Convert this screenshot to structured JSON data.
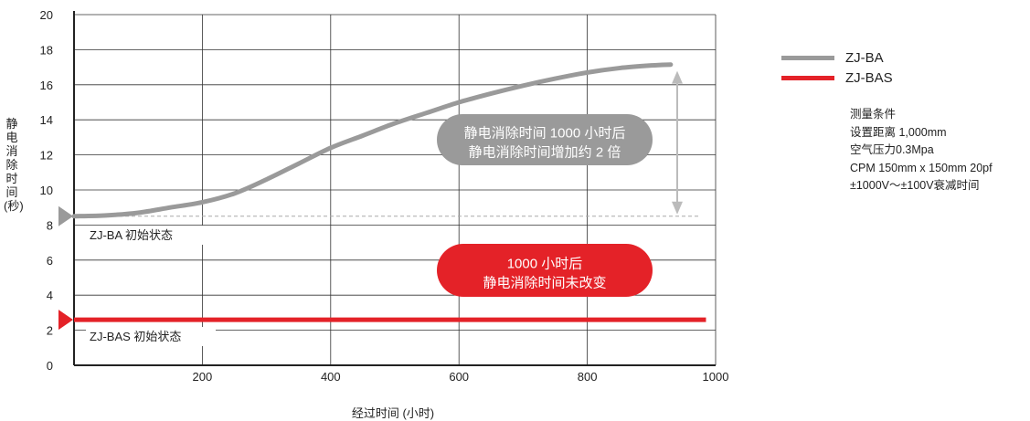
{
  "chart_data": {
    "type": "line",
    "xlabel": "经过时间 (小时)",
    "ylabel": "静电消除时间 (秒)",
    "xlim": [
      0,
      1000
    ],
    "ylim": [
      0,
      20
    ],
    "x_ticks": [
      200,
      400,
      600,
      800,
      1000
    ],
    "y_ticks": [
      0,
      2,
      4,
      6,
      8,
      10,
      12,
      14,
      16,
      18,
      20
    ],
    "grid": true,
    "legend_position": "right",
    "series": [
      {
        "name": "ZJ-BA",
        "color": "#9a9a9a",
        "x": [
          0,
          50,
          100,
          150,
          200,
          250,
          300,
          350,
          400,
          450,
          500,
          550,
          600,
          650,
          700,
          750,
          800,
          850,
          900,
          930
        ],
        "values": [
          8.5,
          8.55,
          8.7,
          9.0,
          9.3,
          9.8,
          10.6,
          11.5,
          12.4,
          13.1,
          13.8,
          14.4,
          15.0,
          15.5,
          15.95,
          16.35,
          16.7,
          16.95,
          17.1,
          17.15
        ]
      },
      {
        "name": "ZJ-BAS",
        "color": "#e42228",
        "x": [
          0,
          985
        ],
        "values": [
          2.6,
          2.6
        ]
      }
    ],
    "annotations": {
      "ba_initial": "ZJ-BA 初始状态",
      "bas_initial": "ZJ-BAS 初始状态",
      "gray_bubble": [
        "静电消除时间 1000 小时后",
        "静电消除时间增加约 2 倍"
      ],
      "red_bubble": [
        "1000 小时后",
        "静电消除时间未改变"
      ]
    }
  },
  "conditions": {
    "title": "测量条件",
    "lines": [
      "设置距离 1,000mm",
      "空气压力0.3Mpa",
      "CPM 150mm x 150mm 20pf",
      "±1000V〜±100V衰减时间"
    ]
  },
  "colors": {
    "gray": "#9a9a9a",
    "red": "#e42228",
    "axis": "#222222",
    "grid": "#333333"
  }
}
